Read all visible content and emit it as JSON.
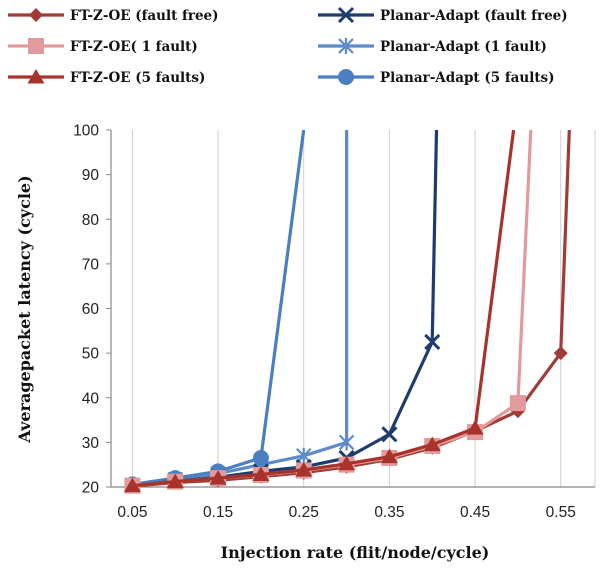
{
  "chart_data": {
    "type": "line",
    "title": "",
    "xlabel": "Injection rate (flit/node/cycle)",
    "ylabel": "Averagepacket latency (cycle)",
    "xlim": [
      0.025,
      0.59
    ],
    "ylim": [
      20,
      100
    ],
    "x_ticks": [
      "0.05",
      "0.15",
      "0.25",
      "0.35",
      "0.45",
      "0.55"
    ],
    "x_tick_values": [
      0.05,
      0.15,
      0.25,
      0.35,
      0.45,
      0.55
    ],
    "y_ticks": [
      "20",
      "30",
      "40",
      "50",
      "60",
      "70",
      "80",
      "90",
      "100"
    ],
    "y_tick_values": [
      20,
      30,
      40,
      50,
      60,
      70,
      80,
      90,
      100
    ],
    "grid": "vertical",
    "legend_position": "top",
    "series": [
      {
        "name": "FT-Z-OE (fault free)",
        "color": "#A23B36",
        "marker": "diamond",
        "points": [
          [
            0.05,
            20.2
          ],
          [
            0.1,
            21
          ],
          [
            0.15,
            21.5
          ],
          [
            0.2,
            22.3
          ],
          [
            0.25,
            23.2
          ],
          [
            0.3,
            24.5
          ],
          [
            0.35,
            26.2
          ],
          [
            0.4,
            28.8
          ],
          [
            0.45,
            32.5
          ],
          [
            0.5,
            37
          ],
          [
            0.55,
            50
          ]
        ],
        "marked": [
          true,
          true,
          true,
          true,
          true,
          true,
          true,
          true,
          true,
          true,
          true
        ],
        "tail": [
          [
            0.56,
            100
          ]
        ]
      },
      {
        "name": "FT-Z-OE( 1 fault)",
        "color": "#E39A9A",
        "marker": "square",
        "points": [
          [
            0.05,
            20.3
          ],
          [
            0.1,
            21.2
          ],
          [
            0.15,
            22
          ],
          [
            0.2,
            22.7
          ],
          [
            0.25,
            23.7
          ],
          [
            0.3,
            25
          ],
          [
            0.35,
            26.5
          ],
          [
            0.4,
            29.2
          ],
          [
            0.45,
            32.3
          ],
          [
            0.5,
            38.8
          ]
        ],
        "marked": [
          true,
          true,
          true,
          true,
          true,
          true,
          true,
          true,
          true,
          true
        ],
        "tail": [
          [
            0.515,
            100
          ]
        ]
      },
      {
        "name": "FT-Z-OE (5 faults)",
        "color": "#A8322C",
        "marker": "triangle",
        "points": [
          [
            0.05,
            20.3
          ],
          [
            0.1,
            21.2
          ],
          [
            0.15,
            22
          ],
          [
            0.2,
            22.8
          ],
          [
            0.25,
            23.8
          ],
          [
            0.3,
            25.2
          ],
          [
            0.35,
            26.8
          ],
          [
            0.4,
            29.5
          ],
          [
            0.45,
            33.2
          ]
        ],
        "marked": [
          true,
          true,
          true,
          true,
          true,
          true,
          true,
          true,
          true
        ],
        "tail": [
          [
            0.495,
            100
          ]
        ]
      },
      {
        "name": "Planar-Adapt (fault free)",
        "color": "#1F3C6E",
        "marker": "x",
        "points": [
          [
            0.05,
            20.3
          ],
          [
            0.1,
            21.3
          ],
          [
            0.15,
            22.2
          ],
          [
            0.2,
            23.5
          ],
          [
            0.25,
            24.5
          ],
          [
            0.3,
            26.5
          ],
          [
            0.35,
            31.8
          ],
          [
            0.4,
            52.5
          ]
        ],
        "marked": [
          true,
          true,
          true,
          true,
          true,
          true,
          true,
          true
        ],
        "tail": [
          [
            0.405,
            100
          ]
        ]
      },
      {
        "name": "Planar-Adapt (1 fault)",
        "color": "#5C8ACB",
        "marker": "star",
        "points": [
          [
            0.05,
            20.4
          ],
          [
            0.1,
            21.7
          ],
          [
            0.15,
            23
          ],
          [
            0.2,
            25
          ],
          [
            0.25,
            27
          ],
          [
            0.3,
            30
          ],
          [
            0.3,
            100
          ]
        ],
        "marked": [
          true,
          true,
          true,
          true,
          true,
          true,
          false
        ],
        "tail": []
      },
      {
        "name": "Planar-Adapt (5 faults)",
        "color": "#4A7FC1",
        "marker": "circle",
        "points": [
          [
            0.05,
            20.6
          ],
          [
            0.1,
            22
          ],
          [
            0.15,
            23.5
          ],
          [
            0.2,
            26.5
          ]
        ],
        "marked": [
          true,
          true,
          true,
          true
        ],
        "tail": [
          [
            0.25,
            100
          ]
        ]
      }
    ]
  }
}
